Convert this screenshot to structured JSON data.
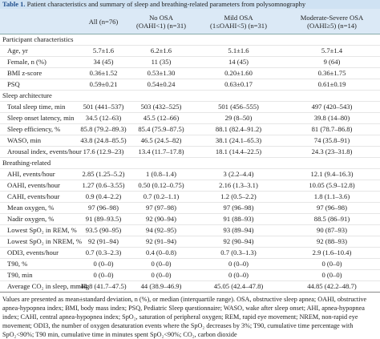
{
  "title": {
    "label": "Table 1.",
    "text": "Patient characteristics and summary of sleep and breathing-related parameters from polysomnography"
  },
  "table": {
    "header": [
      [
        ""
      ],
      [
        "All (n=76)"
      ],
      [
        "No OSA",
        "(OAHI<1) (n=31)"
      ],
      [
        "Mild OSA",
        "(1≤OAHI<5) (n=31)"
      ],
      [
        "Moderate-Severe OSA",
        "(OAHI≥5) (n=14)"
      ]
    ],
    "sections": [
      {
        "name": "Participant characteristics",
        "rows": [
          [
            "Age, yr",
            "5.7±1.6",
            "6.2±1.6",
            "5.1±1.6",
            "5.7±1.4"
          ],
          [
            "Female, n (%)",
            "34 (45)",
            "11 (35)",
            "14 (45)",
            "9 (64)"
          ],
          [
            "BMI z-score",
            "0.36±1.52",
            "0.53±1.30",
            "0.20±1.60",
            "0.36±1.75"
          ],
          [
            "PSQ",
            "0.59±0.21",
            "0.54±0.24",
            "0.63±0.17",
            "0.61±0.19"
          ]
        ]
      },
      {
        "name": "Sleep architecture",
        "rows": [
          [
            "Total sleep time, min",
            "501 (441–537)",
            "503 (432–525)",
            "501 (456–555)",
            "497 (420–543)"
          ],
          [
            "Sleep onset latency, min",
            "34.5 (12–63)",
            "45.5 (12–66)",
            "29 (8–50)",
            "39.8 (14–80)"
          ],
          [
            "Sleep efficiency, %",
            "85.8 (79.2–89.3)",
            "85.4 (75.9–87.5)",
            "88.1 (82.4–91.2)",
            "81 (78.7–86.8)"
          ],
          [
            "WASO, min",
            "43.8 (24.8–85.5)",
            "46.5 (24.5–82)",
            "38.1 (24.1–65.3)",
            "74 (35.8–91)"
          ],
          [
            "Arousal index, events/hour",
            "17.6 (12.9–23)",
            "13.4 (11.7–17.8)",
            "18.1 (14.4–22.5)",
            "24.3 (23–31.8)"
          ]
        ]
      },
      {
        "name": "Breathing-related",
        "rows": [
          [
            "AHI, events/hour",
            "2.85 (1.25–5.2)",
            "1 (0.8–1.4)",
            "3 (2.2–4.4)",
            "12.1 (9.4–16.3)"
          ],
          [
            "OAHI, events/hour",
            "1.27 (0.6–3.55)",
            "0.50 (0.12–0.75)",
            "2.16 (1.3–3.1)",
            "10.05 (5.9–12.8)"
          ],
          [
            "CAHI, events/hour",
            "0.9 (0.4–2.2)",
            "0.7 (0.2–1.1)",
            "1.2 (0.5–2.2)",
            "1.8 (1.1–3.6)"
          ],
          [
            "Mean oxygen, %",
            "97 (96–98)",
            "97 (97–98)",
            "97 (96–98)",
            "97 (96–98)"
          ],
          [
            "Nadir oxygen, %",
            "91 (89–93.5)",
            "92 (90–94)",
            "91 (88–93)",
            "88.5 (86–91)"
          ],
          [
            "Lowest SpO₂ in REM, %",
            "93.5 (90–95)",
            "94 (92–95)",
            "93 (89–94)",
            "90 (87–93)"
          ],
          [
            "Lowest SpO₂ in NREM, %",
            "92 (91–94)",
            "92 (91–94)",
            "92 (90–94)",
            "92 (88–93)"
          ],
          [
            "ODI3, events/hour",
            "0.7 (0.3–2.3)",
            "0.4 (0–0.8)",
            "0.7 (0.3–1.3)",
            "2.9 (1.6–10.4)"
          ],
          [
            "T90, %",
            "0 (0–0)",
            "0 (0–0)",
            "0 (0–0)",
            "0 (0–0)"
          ],
          [
            "T90, min",
            "0 (0–0)",
            "0 (0–0)",
            "0 (0–0)",
            "0 (0–0)"
          ],
          [
            "Average CO₂ in sleep, mmHg",
            "44.8 (41.7–47.5)",
            "44 (38.9–46.9)",
            "45.05 (42.4–47.8)",
            "44.85 (42.2–48.7)"
          ]
        ]
      }
    ]
  },
  "footnote": "Values are presented as mean±standard deviation, n (%), or median (interquartile range). OSA, obstructive sleep apnea; OAHI, obstructive apnea-hypopnea index; BMI, body mass index; PSQ, Pediatric Sleep questionnaire; WASO, wake after sleep onset; AHI, apnea-hypopnea index; CAHI, central apnea-hypopnea index; SpO₂, saturation of peripheral oxygen; REM, rapid eye movement; NREM, non-rapid eye movement; ODI3, the number of oxygen desaturation events where the SpO₂ decreases by 3%; T90, cumulative time percentage with SpO₂<90%; T90 min, cumulative time in minutes spent SpO₂<90%; CO₂, carbon dioxide"
}
